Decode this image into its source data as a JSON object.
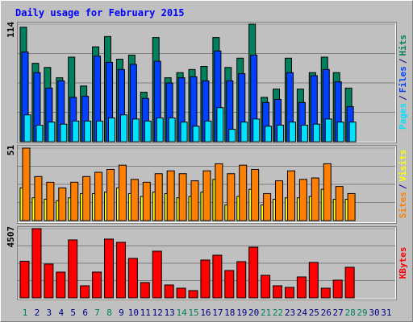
{
  "legend_separator": "/",
  "chart_data": [
    {
      "type": "bar",
      "title": "Daily usage for February 2015",
      "ylim": [
        0,
        114
      ],
      "yticks": [
        114
      ],
      "series": [
        {
          "name": "Hits",
          "color": "#00805c",
          "values": [
            111,
            76,
            72,
            62,
            82,
            54,
            92,
            102,
            80,
            84,
            48,
            101,
            62,
            67,
            70,
            73,
            101,
            72,
            81,
            114,
            43,
            51,
            81,
            51,
            67,
            82,
            67,
            52,
            null,
            null,
            null
          ]
        },
        {
          "name": "Files",
          "color": "#0040ff",
          "values": [
            87,
            67,
            52,
            59,
            43,
            44,
            83,
            77,
            70,
            75,
            42,
            78,
            57,
            62,
            63,
            59,
            88,
            59,
            66,
            84,
            38,
            41,
            67,
            38,
            64,
            70,
            58,
            34,
            null,
            null,
            null
          ]
        },
        {
          "name": "Pages",
          "color": "#00e0ff",
          "values": [
            26,
            16,
            19,
            17,
            20,
            20,
            20,
            23,
            26,
            22,
            20,
            23,
            23,
            19,
            15,
            20,
            33,
            12,
            19,
            22,
            15,
            16,
            19,
            16,
            17,
            22,
            19,
            19,
            null,
            null,
            null
          ]
        }
      ]
    },
    {
      "type": "bar",
      "ylim": [
        0,
        51
      ],
      "yticks": [
        51
      ],
      "series": [
        {
          "name": "Visits",
          "color": "#ffff00",
          "values": [
            23,
            16,
            15,
            14,
            16,
            19,
            19,
            20,
            23,
            19,
            17,
            20,
            19,
            16,
            17,
            20,
            29,
            11,
            17,
            22,
            11,
            15,
            16,
            16,
            17,
            22,
            15,
            15,
            null,
            null,
            null
          ]
        },
        {
          "name": "Sites",
          "color": "#ff8000",
          "values": [
            51,
            31,
            27,
            23,
            27,
            31,
            34,
            36,
            39,
            29,
            27,
            33,
            35,
            33,
            28,
            35,
            40,
            33,
            39,
            36,
            19,
            28,
            35,
            29,
            30,
            40,
            24,
            19,
            null,
            null,
            null
          ]
        }
      ]
    },
    {
      "type": "bar",
      "ylim": [
        0,
        4507
      ],
      "yticks": [
        4507
      ],
      "categories": [
        "1",
        "2",
        "3",
        "4",
        "5",
        "6",
        "7",
        "8",
        "9",
        "10",
        "11",
        "12",
        "13",
        "14",
        "15",
        "16",
        "17",
        "18",
        "19",
        "20",
        "21",
        "22",
        "23",
        "24",
        "25",
        "26",
        "27",
        "28",
        "29",
        "30",
        "31"
      ],
      "label_colors": [
        "#00805c",
        "#000080",
        "#000080",
        "#000080",
        "#000080",
        "#000080",
        "#00805c",
        "#00805c",
        "#000080",
        "#000080",
        "#000080",
        "#000080",
        "#000080",
        "#00805c",
        "#00805c",
        "#000080",
        "#000080",
        "#000080",
        "#000080",
        "#000080",
        "#00805c",
        "#00805c",
        "#000080",
        "#000080",
        "#000080",
        "#000080",
        "#000080",
        "#00805c",
        "#00805c",
        "#000080",
        "#000080"
      ],
      "series": [
        {
          "name": "KBytes",
          "color": "#ff0000",
          "values": [
            2386,
            4507,
            2201,
            1677,
            3773,
            786,
            1677,
            3826,
            3616,
            2568,
            996,
            3039,
            838,
            629,
            472,
            2463,
            2777,
            1782,
            2358,
            3301,
            1467,
            786,
            681,
            1362,
            2306,
            629,
            1153,
            1991,
            null,
            null,
            null
          ]
        }
      ]
    }
  ]
}
